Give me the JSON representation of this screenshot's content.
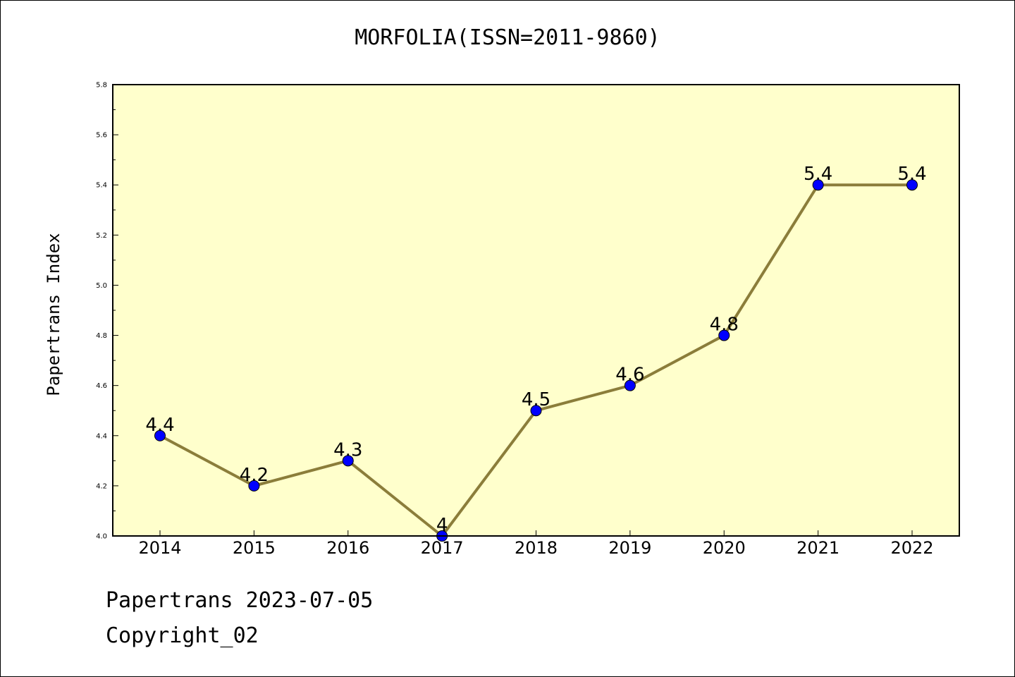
{
  "chart_data": {
    "type": "line",
    "title": "MORFOLIA(ISSN=2011-9860)",
    "xlabel": "",
    "ylabel": "Papertrans Index",
    "categories": [
      "2014",
      "2015",
      "2016",
      "2017",
      "2018",
      "2019",
      "2020",
      "2021",
      "2022"
    ],
    "values": [
      4.4,
      4.2,
      4.3,
      4.0,
      4.5,
      4.6,
      4.8,
      5.4,
      5.4
    ],
    "data_labels": [
      "4.4",
      "4.2",
      "4.3",
      "4",
      "4.5",
      "4.6",
      "4.8",
      "5.4",
      "5.4"
    ],
    "ylim": [
      4.0,
      5.8
    ],
    "yticks": [
      "4.0",
      "4.2",
      "4.4",
      "4.6",
      "4.8",
      "5.0",
      "5.2",
      "5.4",
      "5.6",
      "5.8"
    ],
    "grid": false,
    "legend": "none",
    "colors": {
      "plot_background": "#ffffcc",
      "line": "#8b7d3a",
      "marker": "#0000ff"
    }
  },
  "footer": {
    "date_text": "Papertrans 2023-07-05",
    "copyright_text": "Copyright_02"
  }
}
